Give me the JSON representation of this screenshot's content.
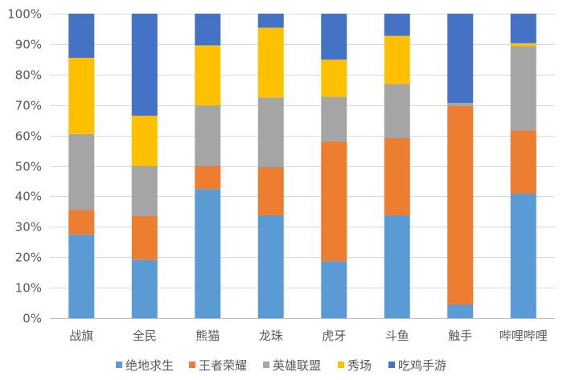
{
  "chart_data": {
    "type": "bar",
    "stacked": "percent",
    "categories": [
      "战旗",
      "全民",
      "熊猫",
      "龙珠",
      "虎牙",
      "斗鱼",
      "触手",
      "哔哩哔哩"
    ],
    "series": [
      {
        "name": "绝地求生",
        "color": "#5B9BD5",
        "values": [
          27.5,
          19.2,
          42.4,
          33.8,
          18.7,
          33.8,
          4.5,
          40.9
        ]
      },
      {
        "name": "王者荣耀",
        "color": "#ED7D31",
        "values": [
          8.0,
          14.3,
          7.6,
          15.8,
          39.4,
          25.3,
          65.2,
          20.7
        ]
      },
      {
        "name": "英雄联盟",
        "color": "#A5A5A5",
        "values": [
          25.0,
          16.5,
          19.9,
          22.9,
          14.6,
          17.8,
          0.8,
          27.8
        ]
      },
      {
        "name": "秀场",
        "color": "#FFC000",
        "values": [
          25.0,
          16.5,
          19.7,
          22.9,
          12.2,
          15.8,
          0.1,
          0.9
        ]
      },
      {
        "name": "吃鸡手游",
        "color": "#4472C4",
        "values": [
          14.5,
          33.5,
          10.4,
          4.6,
          15.1,
          7.3,
          29.4,
          9.7
        ]
      }
    ],
    "ylim": [
      0,
      100
    ],
    "y_ticks": [
      "0%",
      "10%",
      "20%",
      "30%",
      "40%",
      "50%",
      "60%",
      "70%",
      "80%",
      "90%",
      "100%"
    ],
    "grid": "horizontal",
    "legend_position": "bottom"
  }
}
